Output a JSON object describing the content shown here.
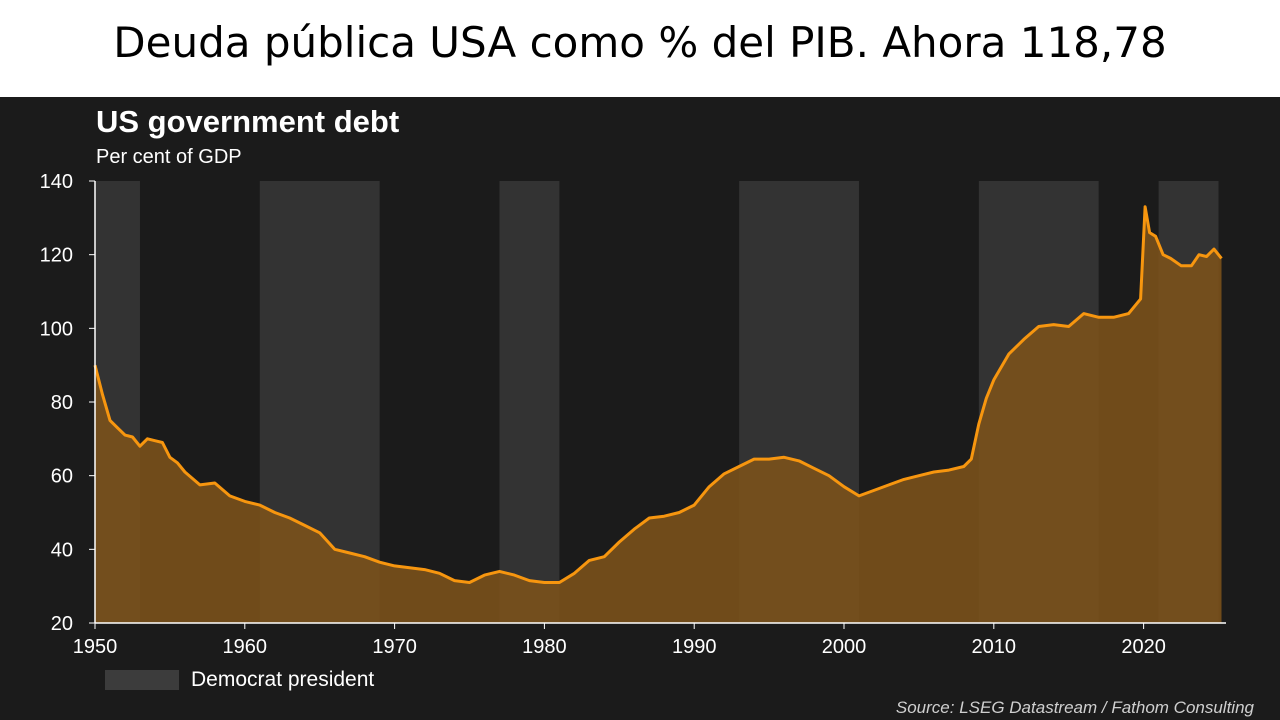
{
  "slide": {
    "title": "Deuda pública USA como % del PIB. Ahora 118,78"
  },
  "chart_data": {
    "type": "area",
    "title": "US government debt",
    "subtitle": "Per cent of GDP",
    "xlabel": "",
    "ylabel": "",
    "xlim": [
      1950,
      2025.5
    ],
    "ylim": [
      20,
      140
    ],
    "y_ticks": [
      20,
      40,
      60,
      80,
      100,
      120,
      140
    ],
    "x_ticks": [
      1950,
      1960,
      1970,
      1980,
      1990,
      2000,
      2010,
      2020
    ],
    "grid": false,
    "legend": {
      "position": "bottom-left",
      "entries": [
        "Democrat president"
      ]
    },
    "democrat_periods": [
      [
        1950,
        1953
      ],
      [
        1961,
        1969
      ],
      [
        1977,
        1981
      ],
      [
        1993,
        2001
      ],
      [
        2009,
        2017
      ],
      [
        2021,
        2025
      ]
    ],
    "colors": {
      "line": "#f7960f",
      "fill": "#7f541a",
      "shade": "#333333",
      "background": "#1b1b1b"
    },
    "series": [
      {
        "x": [
          1950,
          1950.5,
          1951,
          1951.5,
          1952,
          1952.5,
          1953,
          1953.5,
          1954,
          1954.5,
          1955,
          1955.5,
          1956,
          1957,
          1958,
          1959,
          1960,
          1961,
          1962,
          1963,
          1964,
          1965,
          1966,
          1967,
          1968,
          1969,
          1970,
          1971,
          1972,
          1973,
          1974,
          1975,
          1976,
          1977,
          1978,
          1979,
          1980,
          1981,
          1982,
          1983,
          1984,
          1985,
          1986,
          1987,
          1988,
          1989,
          1990,
          1991,
          1992,
          1993,
          1994,
          1995,
          1996,
          1997,
          1998,
          1999,
          2000,
          2001,
          2002,
          2003,
          2004,
          2005,
          2006,
          2007,
          2008,
          2008.5,
          2009,
          2009.5,
          2010,
          2011,
          2012,
          2013,
          2014,
          2015,
          2016,
          2017,
          2018,
          2019,
          2019.8,
          2020.1,
          2020.4,
          2020.8,
          2021.3,
          2021.8,
          2022.5,
          2023.2,
          2023.7,
          2024.2,
          2024.7,
          2025.2
        ],
        "values": [
          90,
          82,
          75,
          73,
          71,
          70.5,
          68,
          70,
          69.5,
          69,
          65,
          63.5,
          61,
          57.5,
          58,
          54.5,
          53,
          52,
          50,
          48.5,
          46.5,
          44.5,
          40,
          39,
          38,
          36.5,
          35.5,
          35,
          34.5,
          33.5,
          31.5,
          31,
          33,
          34,
          33,
          31.5,
          31,
          31,
          33.5,
          37,
          38,
          42,
          45.5,
          48.5,
          49,
          50,
          52,
          57,
          60.5,
          62.5,
          64.5,
          64.5,
          65,
          64,
          62,
          60,
          57,
          54.5,
          56,
          57.5,
          59,
          60,
          61,
          61.5,
          62.5,
          64.5,
          74,
          81,
          86,
          93,
          97,
          100.5,
          101,
          100.5,
          104,
          103,
          103,
          104,
          108,
          133,
          126,
          125,
          120,
          119,
          117,
          117,
          120,
          119.5,
          121.5,
          119
        ]
      }
    ]
  },
  "source": "Source: LSEG Datastream / Fathom Consulting"
}
